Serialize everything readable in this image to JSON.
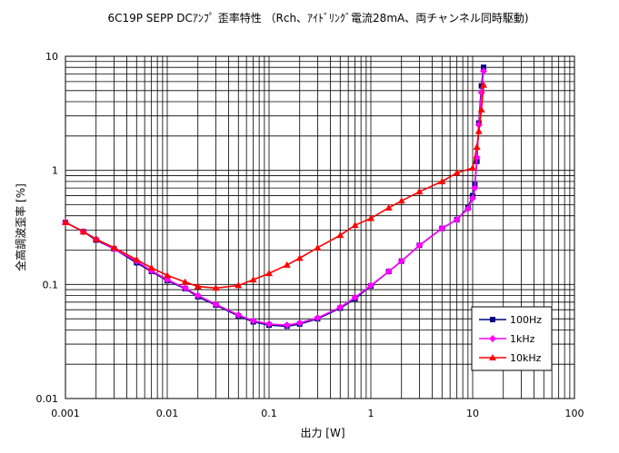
{
  "chart_data": {
    "type": "line",
    "title": "6C19P SEPP DCｱﾝﾌﾟ 歪率特性 （Rch、ｱｲﾄﾞﾘﾝｸﾞ電流28mA、両チャンネル同時駆動)",
    "xlabel": "出力 [W]",
    "ylabel": "全高調波歪率 [%]",
    "x_scale": "log",
    "y_scale": "log",
    "xlim": [
      0.001,
      100
    ],
    "ylim": [
      0.01,
      10
    ],
    "x_ticks": [
      "0.001",
      "0.01",
      "0.1",
      "1",
      "10",
      "100"
    ],
    "y_ticks": [
      "0.01",
      "0.1",
      "1",
      "10"
    ],
    "grid": true,
    "legend_position": "bottom-right",
    "series": [
      {
        "name": "100Hz",
        "color": "#000080",
        "marker": "square",
        "points": [
          [
            0.001,
            0.35
          ],
          [
            0.0015,
            0.29
          ],
          [
            0.002,
            0.245
          ],
          [
            0.003,
            0.205
          ],
          [
            0.005,
            0.155
          ],
          [
            0.007,
            0.13
          ],
          [
            0.01,
            0.108
          ],
          [
            0.015,
            0.092
          ],
          [
            0.02,
            0.078
          ],
          [
            0.03,
            0.066
          ],
          [
            0.05,
            0.053
          ],
          [
            0.07,
            0.047
          ],
          [
            0.1,
            0.044
          ],
          [
            0.15,
            0.043
          ],
          [
            0.2,
            0.045
          ],
          [
            0.3,
            0.05
          ],
          [
            0.5,
            0.062
          ],
          [
            0.7,
            0.075
          ],
          [
            1,
            0.097
          ],
          [
            1.5,
            0.13
          ],
          [
            2,
            0.16
          ],
          [
            3,
            0.22
          ],
          [
            5,
            0.31
          ],
          [
            7,
            0.37
          ],
          [
            9,
            0.47
          ],
          [
            10,
            0.6
          ],
          [
            10.5,
            0.75
          ],
          [
            11,
            1.2
          ],
          [
            11.5,
            2.6
          ],
          [
            12.2,
            5.5
          ],
          [
            12.8,
            8.0
          ]
        ]
      },
      {
        "name": "1kHz",
        "color": "#ff00ff",
        "marker": "diamond",
        "points": [
          [
            0.001,
            0.35
          ],
          [
            0.0015,
            0.29
          ],
          [
            0.002,
            0.25
          ],
          [
            0.003,
            0.205
          ],
          [
            0.005,
            0.16
          ],
          [
            0.007,
            0.132
          ],
          [
            0.01,
            0.11
          ],
          [
            0.015,
            0.093
          ],
          [
            0.02,
            0.08
          ],
          [
            0.03,
            0.067
          ],
          [
            0.05,
            0.054
          ],
          [
            0.07,
            0.048
          ],
          [
            0.1,
            0.045
          ],
          [
            0.15,
            0.044
          ],
          [
            0.2,
            0.046
          ],
          [
            0.3,
            0.051
          ],
          [
            0.5,
            0.063
          ],
          [
            0.7,
            0.077
          ],
          [
            1,
            0.098
          ],
          [
            1.5,
            0.13
          ],
          [
            2,
            0.16
          ],
          [
            3,
            0.22
          ],
          [
            5,
            0.31
          ],
          [
            7,
            0.37
          ],
          [
            9,
            0.46
          ],
          [
            10,
            0.57
          ],
          [
            10.5,
            0.7
          ],
          [
            11,
            1.3
          ],
          [
            11.5,
            2.5
          ],
          [
            12.2,
            4.8
          ],
          [
            12.8,
            7.4
          ]
        ]
      },
      {
        "name": "10kHz",
        "color": "#ff0000",
        "marker": "triangle",
        "points": [
          [
            0.001,
            0.35
          ],
          [
            0.0015,
            0.29
          ],
          [
            0.002,
            0.25
          ],
          [
            0.003,
            0.21
          ],
          [
            0.005,
            0.165
          ],
          [
            0.007,
            0.14
          ],
          [
            0.01,
            0.12
          ],
          [
            0.015,
            0.105
          ],
          [
            0.02,
            0.096
          ],
          [
            0.03,
            0.093
          ],
          [
            0.05,
            0.098
          ],
          [
            0.07,
            0.11
          ],
          [
            0.1,
            0.125
          ],
          [
            0.15,
            0.148
          ],
          [
            0.2,
            0.17
          ],
          [
            0.3,
            0.21
          ],
          [
            0.5,
            0.27
          ],
          [
            0.7,
            0.33
          ],
          [
            1,
            0.38
          ],
          [
            1.5,
            0.47
          ],
          [
            2,
            0.54
          ],
          [
            3,
            0.65
          ],
          [
            5,
            0.8
          ],
          [
            7,
            0.95
          ],
          [
            10,
            1.05
          ],
          [
            11,
            1.6
          ],
          [
            11.5,
            2.2
          ],
          [
            12.2,
            3.4
          ],
          [
            12.8,
            5.6
          ]
        ]
      }
    ]
  }
}
